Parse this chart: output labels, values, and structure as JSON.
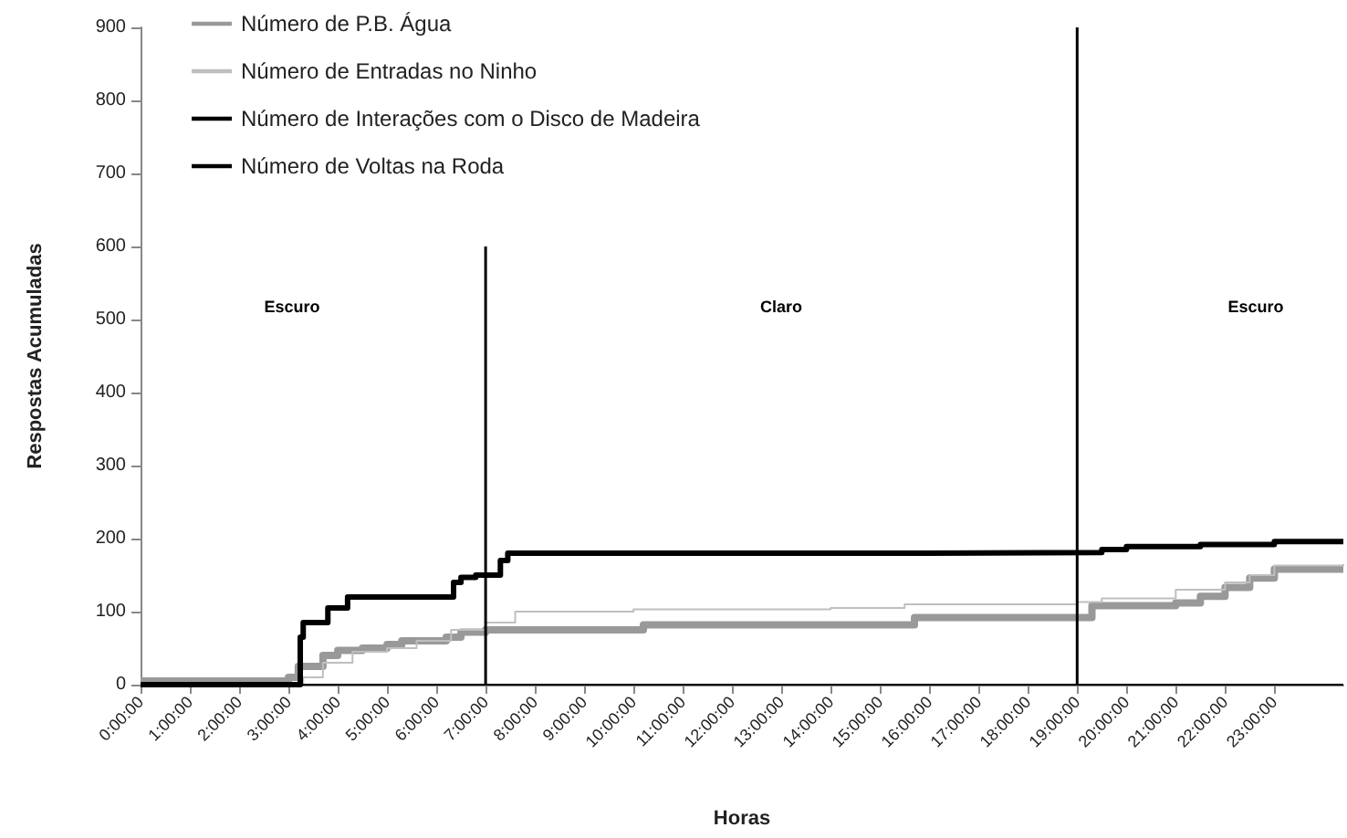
{
  "chart_data": {
    "type": "step",
    "xlabel": "Horas",
    "ylabel": "Respostas Acumuladas",
    "xlim": [
      0,
      24.4
    ],
    "xticks": [
      {
        "value": 0,
        "label": "0:00:00"
      },
      {
        "value": 1,
        "label": "1:00:00"
      },
      {
        "value": 2,
        "label": "2:00:00"
      },
      {
        "value": 3,
        "label": "3:00:00"
      },
      {
        "value": 4,
        "label": "4:00:00"
      },
      {
        "value": 5,
        "label": "5:00:00"
      },
      {
        "value": 6,
        "label": "6:00:00"
      },
      {
        "value": 7,
        "label": "7:00:00"
      },
      {
        "value": 8,
        "label": "8:00:00"
      },
      {
        "value": 9,
        "label": "9:00:00"
      },
      {
        "value": 10,
        "label": "10:00:00"
      },
      {
        "value": 11,
        "label": "11:00:00"
      },
      {
        "value": 12,
        "label": "12:00:00"
      },
      {
        "value": 13,
        "label": "13:00:00"
      },
      {
        "value": 14,
        "label": "14:00:00"
      },
      {
        "value": 15,
        "label": "15:00:00"
      },
      {
        "value": 16,
        "label": "16:00:00"
      },
      {
        "value": 17,
        "label": "17:00:00"
      },
      {
        "value": 18,
        "label": "18:00:00"
      },
      {
        "value": 19,
        "label": "19:00:00"
      },
      {
        "value": 20,
        "label": "20:00:00"
      },
      {
        "value": 21,
        "label": "21:00:00"
      },
      {
        "value": 22,
        "label": "22:00:00"
      },
      {
        "value": 23,
        "label": "23:00:00"
      }
    ],
    "ylim": [
      0,
      900
    ],
    "yticks": [
      0,
      100,
      200,
      300,
      400,
      500,
      600,
      700,
      800,
      900
    ],
    "grid": false,
    "legend": "top left",
    "marker": "none",
    "series": [
      {
        "name": "Número de P.B. Água",
        "color": "#999999",
        "x": [
          0,
          3,
          3.2,
          3.7,
          4.0,
          4.5,
          5.0,
          5.3,
          6.2,
          6.5,
          7.0,
          10.2,
          15.7,
          19.3,
          21.0,
          21.5,
          22.0,
          22.5,
          23.0,
          24.4
        ],
        "values": [
          5,
          10,
          25,
          40,
          47,
          50,
          55,
          60,
          65,
          72,
          75,
          82,
          92,
          108,
          112,
          121,
          133,
          146,
          158,
          158
        ]
      },
      {
        "name": "Número de Entradas no Ninho",
        "color": "#bfbfbf",
        "x": [
          0,
          3.3,
          3.7,
          4.3,
          5.0,
          5.6,
          6.3,
          7.0,
          7.6,
          10.0,
          14.0,
          15.5,
          19.0,
          19.5,
          21.0,
          22.0,
          22.5,
          23.0,
          24.4
        ],
        "values": [
          0,
          10,
          30,
          45,
          50,
          60,
          75,
          85,
          100,
          103,
          105,
          110,
          113,
          118,
          130,
          140,
          150,
          163,
          165
        ]
      },
      {
        "name": "Número de Interações com o Disco de Madeira",
        "color": "#000000",
        "x": [
          0,
          24.4
        ],
        "values": [
          0,
          0
        ]
      },
      {
        "name": "Número de Voltas na Roda",
        "color": "#000000",
        "x": [
          0,
          3.24,
          3.3,
          3.8,
          4.2,
          6.35,
          6.5,
          6.8,
          7.3,
          7.45,
          15.5,
          19.5,
          20.0,
          21.5,
          23.0,
          24.4
        ],
        "values": [
          0,
          65,
          85,
          105,
          120,
          140,
          147,
          150,
          170,
          180,
          181,
          185,
          189,
          192,
          196,
          196
        ]
      },
      {
        "type": "line",
        "color": "#000000",
        "x": [
          7,
          7
        ],
        "values": [
          0,
          600
        ]
      },
      {
        "type": "line",
        "color": "#000000",
        "x": [
          19,
          19
        ],
        "values": [
          0,
          900
        ]
      }
    ],
    "annotations": [
      "Escuro",
      "Claro",
      "Escuro"
    ]
  }
}
